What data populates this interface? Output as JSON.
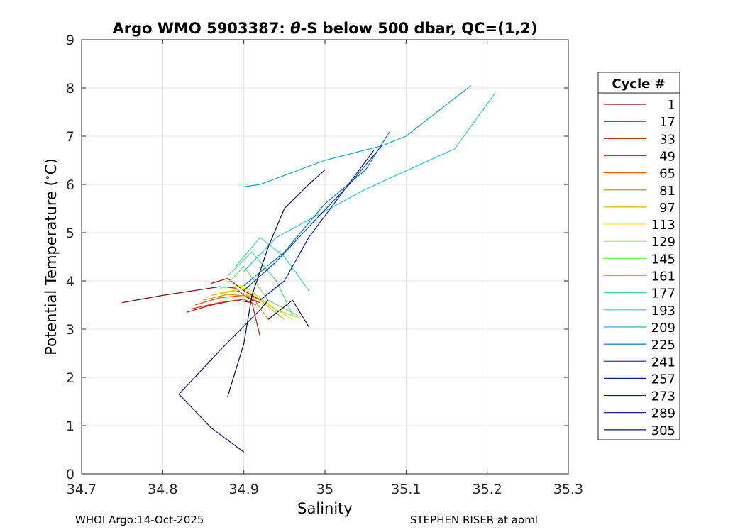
{
  "chart_data": {
    "type": "line",
    "title": "Argo WMO 5903387: θ-S below 500 dbar,  QC=(1,2)",
    "title_parts": {
      "prefix": "Argo WMO 5903387: ",
      "symbol": "θ",
      "suffix": "-S below 500 dbar,  QC=(1,2)"
    },
    "xlabel": "Salinity",
    "ylabel": "Potential Temperature (°C)",
    "ylabel_parts": {
      "text": "Potential Temperature (",
      "degree": "∘",
      "unit": "C)"
    },
    "xlim": [
      34.7,
      35.3
    ],
    "ylim": [
      0,
      9
    ],
    "xticks": [
      34.7,
      34.8,
      34.9,
      35.0,
      35.1,
      35.2,
      35.3
    ],
    "xtick_labels": [
      "34.7",
      "34.8",
      "34.9",
      "35",
      "35.1",
      "35.2",
      "35.3"
    ],
    "yticks": [
      0,
      1,
      2,
      3,
      4,
      5,
      6,
      7,
      8,
      9
    ],
    "ytick_labels": [
      "0",
      "1",
      "2",
      "3",
      "4",
      "5",
      "6",
      "7",
      "8",
      "9"
    ],
    "grid": true,
    "legend": {
      "title": "Cycle #",
      "placement": "right",
      "entries": [
        {
          "label": "1",
          "color": "#7a0c0c"
        },
        {
          "label": "17",
          "color": "#9c0a08"
        },
        {
          "label": "33",
          "color": "#c0130c"
        },
        {
          "label": "49",
          "color": "#d92a10"
        },
        {
          "label": "65",
          "color": "#e25a12"
        },
        {
          "label": "81",
          "color": "#d98a10"
        },
        {
          "label": "97",
          "color": "#d6b50c"
        },
        {
          "label": "113",
          "color": "#f0e81a"
        },
        {
          "label": "129",
          "color": "#b6e43a"
        },
        {
          "label": "145",
          "color": "#7ee25a"
        },
        {
          "label": "161",
          "color": "#42e07a"
        },
        {
          "label": "177",
          "color": "#2ee0b0"
        },
        {
          "label": "193",
          "color": "#20d0e0"
        },
        {
          "label": "209",
          "color": "#10a8d8"
        },
        {
          "label": "225",
          "color": "#0a78c8"
        },
        {
          "label": "241",
          "color": "#0a4ab8"
        },
        {
          "label": "257",
          "color": "#0a1eb0"
        },
        {
          "label": "273",
          "color": "#08108a"
        },
        {
          "label": "289",
          "color": "#060a5a"
        },
        {
          "label": "305",
          "color": "#0a1478"
        }
      ]
    },
    "series": [
      {
        "name": "1",
        "color": "#7a0c0c",
        "x": [
          34.75,
          34.8,
          34.87,
          34.89,
          34.9,
          34.91,
          34.92
        ],
        "y": [
          3.55,
          3.7,
          3.88,
          3.85,
          3.7,
          3.6,
          3.55
        ]
      },
      {
        "name": "17",
        "color": "#9c0a08",
        "x": [
          34.86,
          34.88,
          34.9,
          34.92
        ],
        "y": [
          3.95,
          4.05,
          3.8,
          3.6
        ]
      },
      {
        "name": "33",
        "color": "#c0130c",
        "x": [
          34.83,
          34.86,
          34.89,
          34.91,
          34.92
        ],
        "y": [
          3.35,
          3.5,
          3.6,
          3.55,
          2.85
        ]
      },
      {
        "name": "49",
        "color": "#d92a10",
        "x": [
          34.835,
          34.87,
          34.9,
          34.915
        ],
        "y": [
          3.42,
          3.55,
          3.62,
          3.5
        ]
      },
      {
        "name": "65",
        "color": "#e25a12",
        "x": [
          34.84,
          34.87,
          34.9,
          34.92
        ],
        "y": [
          3.5,
          3.65,
          3.7,
          3.55
        ]
      },
      {
        "name": "81",
        "color": "#d98a10",
        "x": [
          34.85,
          34.88,
          34.91,
          34.93
        ],
        "y": [
          3.6,
          3.72,
          3.68,
          3.2
        ]
      },
      {
        "name": "97",
        "color": "#d6b50c",
        "x": [
          34.86,
          34.89,
          34.92,
          34.95
        ],
        "y": [
          3.7,
          3.8,
          3.6,
          3.2
        ]
      },
      {
        "name": "113",
        "color": "#f0e81a",
        "x": [
          34.87,
          34.9,
          34.93,
          34.96
        ],
        "y": [
          3.75,
          3.85,
          3.5,
          3.2
        ]
      },
      {
        "name": "129",
        "color": "#b6e43a",
        "x": [
          34.87,
          34.9,
          34.94,
          34.97
        ],
        "y": [
          3.85,
          3.9,
          3.4,
          3.22
        ]
      },
      {
        "name": "145",
        "color": "#7ee25a",
        "x": [
          34.88,
          34.9,
          34.93,
          34.97
        ],
        "y": [
          3.95,
          4.3,
          3.6,
          3.25
        ]
      },
      {
        "name": "161",
        "color": "#42e07a",
        "x": [
          34.88,
          34.91,
          34.94,
          34.96
        ],
        "y": [
          4.1,
          4.6,
          4.0,
          3.3
        ]
      },
      {
        "name": "177",
        "color": "#2ee0b0",
        "x": [
          34.89,
          34.92,
          34.95,
          34.98
        ],
        "y": [
          4.3,
          4.9,
          4.5,
          3.8
        ]
      },
      {
        "name": "193",
        "color": "#20d0e0",
        "x": [
          34.9,
          34.94,
          35.05,
          35.16,
          35.21
        ],
        "y": [
          4.2,
          4.9,
          5.9,
          6.74,
          7.9
        ]
      },
      {
        "name": "209",
        "color": "#10a8d8",
        "x": [
          34.9,
          34.92,
          35.0,
          35.07,
          35.1,
          35.18
        ],
        "y": [
          5.95,
          6.0,
          6.5,
          6.8,
          7.0,
          8.05
        ]
      },
      {
        "name": "225",
        "color": "#0a78c8",
        "x": [
          34.9,
          34.95,
          35.0,
          35.05,
          35.08
        ],
        "y": [
          3.9,
          4.6,
          5.6,
          6.3,
          7.1
        ]
      },
      {
        "name": "241",
        "color": "#0a4ab8",
        "x": [
          34.9,
          34.94,
          34.99,
          35.03,
          35.07
        ],
        "y": [
          3.8,
          4.4,
          5.3,
          6.0,
          6.8
        ]
      },
      {
        "name": "257",
        "color": "#0a1eb0",
        "x": [
          34.92,
          34.95,
          34.98,
          35.02,
          35.06
        ],
        "y": [
          3.6,
          4.0,
          4.9,
          5.8,
          6.7
        ]
      },
      {
        "name": "273",
        "color": "#08108a",
        "x": [
          34.93,
          34.96,
          34.98
        ],
        "y": [
          3.2,
          3.6,
          3.05
        ]
      },
      {
        "name": "289",
        "color": "#060a5a",
        "x": [
          34.88,
          34.9,
          34.91,
          34.93,
          34.95,
          34.98,
          35.0
        ],
        "y": [
          1.6,
          2.7,
          3.7,
          4.7,
          5.5,
          6.0,
          6.3
        ]
      },
      {
        "name": "305",
        "color": "#0a1478",
        "x": [
          34.9,
          34.86,
          34.82,
          34.87,
          34.92,
          34.93
        ],
        "y": [
          0.45,
          0.95,
          1.65,
          2.55,
          3.4,
          3.6
        ]
      }
    ]
  },
  "footer": {
    "left": "WHOI Argo:14-Oct-2025",
    "right": "STEPHEN RISER at aoml"
  }
}
